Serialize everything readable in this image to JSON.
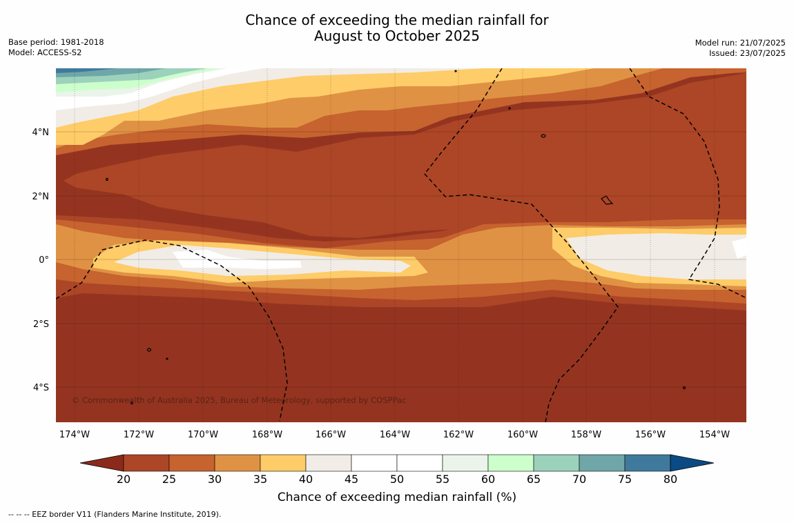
{
  "header": {
    "title_line1": "Chance of exceeding the median rainfall for",
    "title_line2": "August to October 2025",
    "base_period": "Base period: 1981-2018",
    "model": "Model: ACCESS-S2",
    "model_run": "Model run: 21/07/2025",
    "issued": "Issued: 23/07/2025"
  },
  "map": {
    "lon_labels": [
      "174°W",
      "172°W",
      "170°W",
      "168°W",
      "166°W",
      "164°W",
      "162°W",
      "160°W",
      "158°W",
      "156°W",
      "154°W"
    ],
    "lat_labels": [
      "4°N",
      "2°N",
      "0°",
      "2°S",
      "4°S"
    ],
    "copyright": "© Commonwealth of Australia 2025, Bureau of Meteorology, supported by COSPPac"
  },
  "colorbar": {
    "ticks": [
      "20",
      "25",
      "30",
      "35",
      "40",
      "45",
      "50",
      "55",
      "60",
      "65",
      "70",
      "75",
      "80"
    ],
    "under_color": "#8b2a1a",
    "over_color": "#0b4a84",
    "colors": [
      "#ad4626",
      "#c6632f",
      "#e09244",
      "#fecc68",
      "#f1ece6",
      "#ffffff",
      "#ffffff",
      "#ebf4ea",
      "#ccffcc",
      "#9cd1bc",
      "#6fa6a8",
      "#3f7a9c"
    ],
    "label": "Chance of exceeding median rainfall (%)"
  },
  "footer": {
    "eez_note": "--  --  -- EEZ border V11 (Flanders Marine Institute, 2019)."
  }
}
